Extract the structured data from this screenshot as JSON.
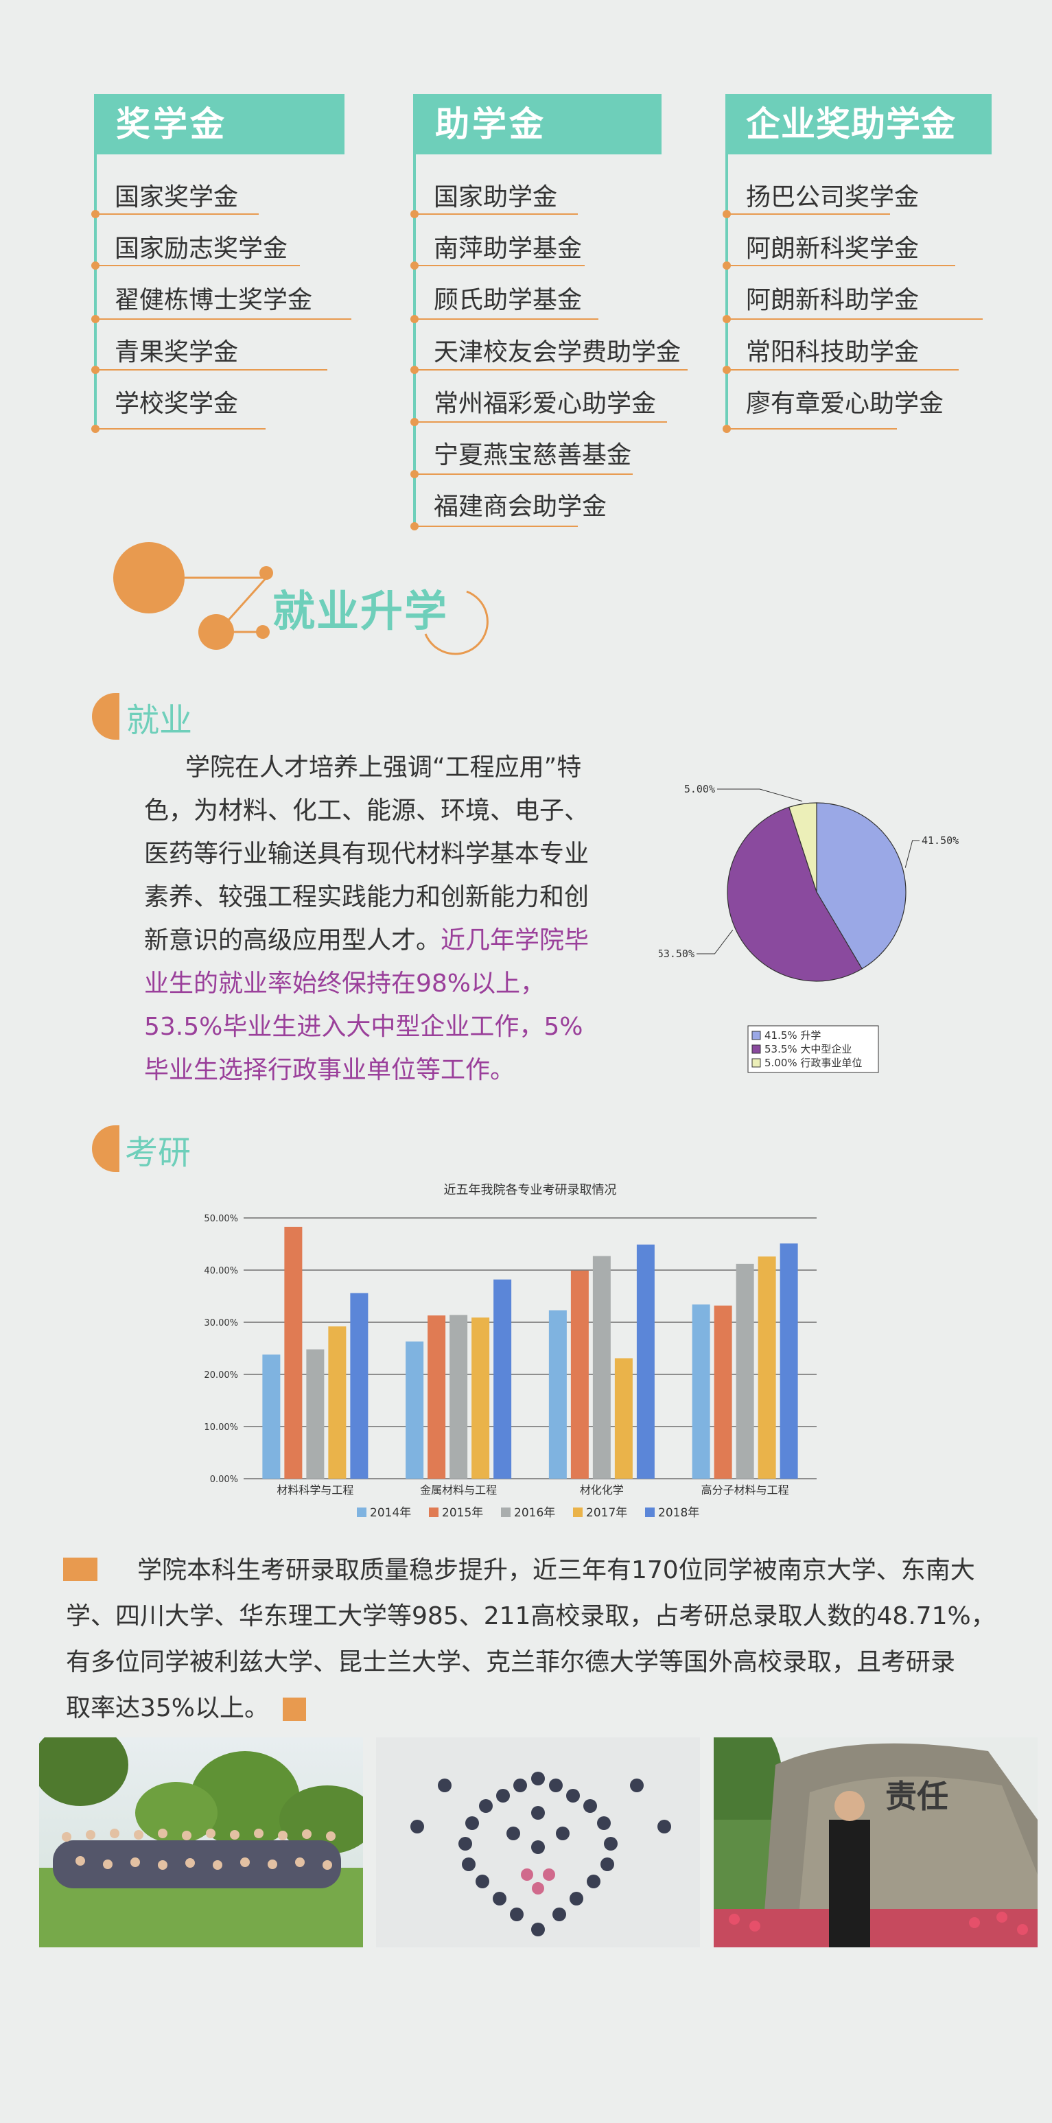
{
  "scholarship_columns": [
    {
      "title": "奖学金",
      "items": [
        "国家奖学金",
        "国家励志奖学金",
        "翟健栋博士奖学金",
        "青果奖学金",
        "学校奖学金"
      ]
    },
    {
      "title": "助学金",
      "items": [
        "国家助学金",
        "南萍助学基金",
        "顾氏助学基金",
        "天津校友会学费助学金",
        "常州福彩爱心助学金",
        "宁夏燕宝慈善基金",
        "福建商会助学金"
      ]
    },
    {
      "title": "企业奖助学金",
      "items": [
        "扬巴公司奖学金",
        "阿朗新科奖学金",
        "阿朗新科助学金",
        "常阳科技助学金",
        "廖有章爱心助学金"
      ]
    }
  ],
  "section_banner": {
    "title": "就业升学"
  },
  "employment": {
    "title": "就业",
    "para_lines": [
      "学院在人才培养上强调“工程应用”特",
      "色，为材料、化工、能源、环境、电子、",
      "医药等行业输送具有现代材料学基本专业",
      "素养、较强工程实践能力和创新能力和创"
    ],
    "para_line5_normal": "新意识的高级应用型人才。",
    "para_line5_highlight": "近几年学院毕",
    "highlight_lines": [
      "业生的就业率始终保持在98%以上，",
      "53.5%毕业生进入大中型企业工作，5%",
      "毕业生选择行政事业单位等工作。"
    ]
  },
  "pie_chart_data": {
    "type": "pie",
    "labels": [
      "升学",
      "大中型企业",
      "行政事业单位"
    ],
    "values": [
      41.5,
      53.5,
      5.0
    ],
    "value_labels": [
      "41.50%",
      "53.50%",
      "5.00%"
    ],
    "legend_entries": [
      "41.5% 升学",
      "53.5% 大中型企业",
      "5.00% 行政事业单位"
    ],
    "colors": [
      "#9aa8e6",
      "#8a4a9e",
      "#ecefb8"
    ]
  },
  "kaoyan": {
    "title": "考研"
  },
  "chart_data": {
    "type": "bar",
    "title": "近五年我院各专业考研录取情况",
    "categories": [
      "材料科学与工程",
      "金属材料与工程",
      "材化化学",
      "高分子材料与工程"
    ],
    "series": [
      {
        "name": "2014年",
        "values": [
          23.8,
          26.3,
          32.3,
          33.4
        ],
        "color": "#7fb3e0"
      },
      {
        "name": "2015年",
        "values": [
          48.3,
          31.3,
          39.9,
          33.2
        ],
        "color": "#e07b53"
      },
      {
        "name": "2016年",
        "values": [
          24.8,
          31.4,
          42.7,
          41.2
        ],
        "color": "#a9adad"
      },
      {
        "name": "2017年",
        "values": [
          29.2,
          30.9,
          23.1,
          42.6
        ],
        "color": "#eab34a"
      },
      {
        "name": "2018年",
        "values": [
          35.6,
          38.2,
          44.9,
          45.1
        ],
        "color": "#5b86d8"
      }
    ],
    "ylim": [
      0,
      50
    ],
    "yticks": [
      "0.00%",
      "10.00%",
      "20.00%",
      "30.00%",
      "40.00%",
      "50.00%"
    ]
  },
  "bottom_text": {
    "lines": [
      "学院本科生考研录取质量稳步提升，近三年有170位同学被南京大学、东南大",
      "学、四川大学、华东理工大学等985、211高校录取，占考研总录取人数的48.71%，",
      "有多位同学被利兹大学、昆士兰大学、克兰菲尔德大学等国外高校录取，且考研录",
      "取率达35%以上。"
    ]
  },
  "photos": {
    "stone_text": "责任"
  }
}
